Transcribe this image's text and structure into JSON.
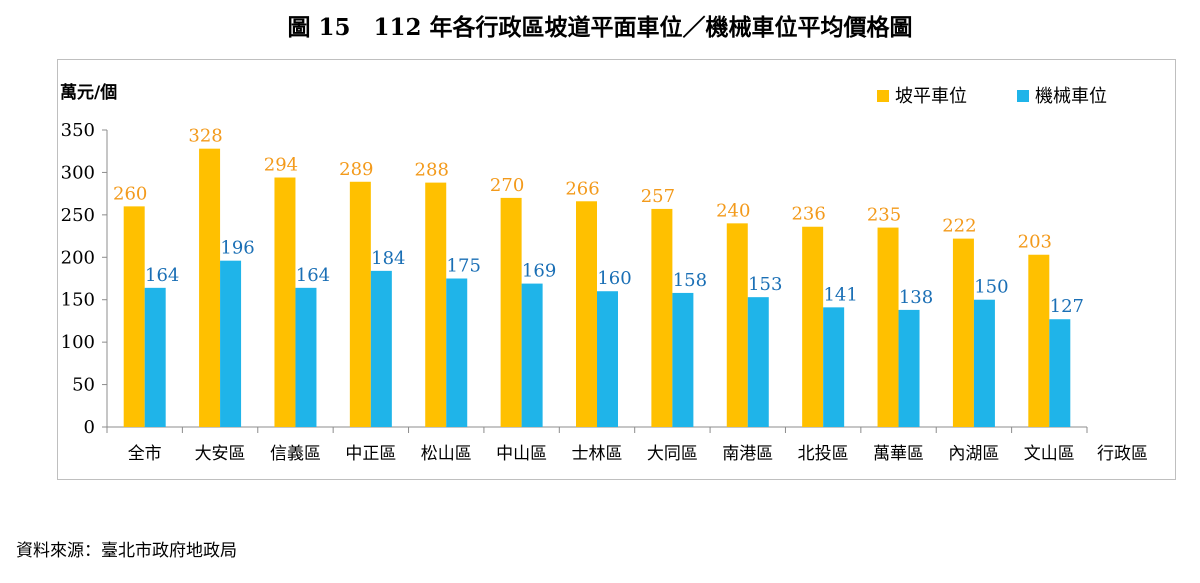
{
  "title": "圖 15　112 年各行政區坡道平面車位／機械車位平均價格圖",
  "source": "資料來源：臺北市政府地政局",
  "chart_data": {
    "type": "bar",
    "ylabel": "萬元/個",
    "xlabel": "行政區",
    "ylim": [
      0,
      350
    ],
    "yticks": [
      0,
      50,
      100,
      150,
      200,
      250,
      300,
      350
    ],
    "legend_position": "top-right",
    "categories": [
      "全市",
      "大安區",
      "信義區",
      "中正區",
      "松山區",
      "中山區",
      "士林區",
      "大同區",
      "南港區",
      "北投區",
      "萬華區",
      "內湖區",
      "文山區"
    ],
    "series": [
      {
        "name": "坡平車位",
        "color": "#FFC000",
        "label_color": "#F39A1B",
        "values": [
          260,
          328,
          294,
          289,
          288,
          270,
          266,
          257,
          240,
          236,
          235,
          222,
          203
        ]
      },
      {
        "name": "機械車位",
        "color": "#1FB4E9",
        "label_color": "#1A6FB5",
        "values": [
          164,
          196,
          164,
          184,
          175,
          169,
          160,
          158,
          153,
          141,
          138,
          150,
          127
        ]
      }
    ]
  }
}
